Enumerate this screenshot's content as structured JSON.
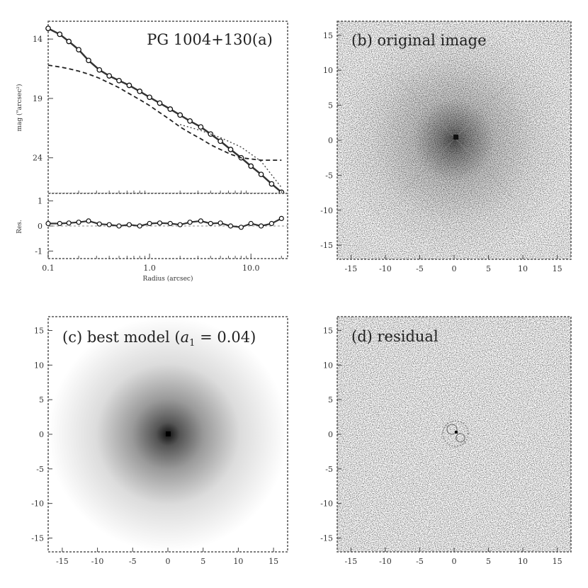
{
  "chart_data": [
    {
      "panel": "a",
      "type": "line",
      "title": "PG 1004+130(a)",
      "xlabel": "Radius (arcsec)",
      "xscale": "log",
      "xlim": [
        0.1,
        23
      ],
      "xticks": [
        "0.1",
        "1.0",
        "10.0"
      ],
      "top": {
        "ylabel": "mag (\"arcsec²)",
        "ylim": [
          27,
          12.5
        ],
        "yticks": [
          "14",
          "19",
          "24"
        ],
        "series": [
          {
            "style": "points",
            "x": [
              0.1,
              0.13,
              0.16,
              0.2,
              0.25,
              0.32,
              0.4,
              0.5,
              0.63,
              0.8,
              1.0,
              1.26,
              1.6,
              2.0,
              2.5,
              3.2,
              4.0,
              5.0,
              6.3,
              8.0,
              10.0,
              12.6,
              16.0,
              20.0
            ],
            "y": [
              13.1,
              13.6,
              14.2,
              14.9,
              15.8,
              16.6,
              17.1,
              17.5,
              17.9,
              18.4,
              18.9,
              19.4,
              19.9,
              20.4,
              20.9,
              21.4,
              22.0,
              22.6,
              23.3,
              24.0,
              24.7,
              25.4,
              26.2,
              26.9
            ]
          },
          {
            "style": "dashed",
            "x": [
              0.1,
              0.13,
              0.16,
              0.2,
              0.25,
              0.32,
              0.4,
              0.5,
              0.63,
              0.8,
              1.0,
              1.26,
              1.6,
              2.0,
              2.5,
              3.2,
              4.0,
              5.0,
              6.3,
              8.0,
              10.0,
              12.6,
              16.0,
              20.0
            ],
            "y": [
              16.2,
              16.35,
              16.5,
              16.7,
              16.95,
              17.3,
              17.7,
              18.1,
              18.6,
              19.1,
              19.6,
              20.2,
              20.8,
              21.4,
              21.9,
              22.4,
              22.9,
              23.3,
              23.7,
              24.0,
              24.1,
              24.2,
              24.2,
              24.2
            ]
          },
          {
            "style": "dotted",
            "x": [
              2.0,
              3.2,
              5.0,
              8.0,
              12.6,
              20.0
            ],
            "y": [
              21.2,
              21.7,
              22.3,
              23.1,
              24.3,
              26.5
            ]
          }
        ]
      },
      "bottom": {
        "ylabel": "Res.",
        "ylim": [
          -1.3,
          1.3
        ],
        "yticks": [
          "1",
          "0",
          "-1"
        ],
        "x": [
          0.1,
          0.13,
          0.16,
          0.2,
          0.25,
          0.32,
          0.4,
          0.5,
          0.63,
          0.8,
          1.0,
          1.26,
          1.6,
          2.0,
          2.5,
          3.2,
          4.0,
          5.0,
          6.3,
          8.0,
          10.0,
          12.6,
          16.0,
          20.0
        ],
        "y": [
          0.1,
          0.1,
          0.12,
          0.15,
          0.2,
          0.08,
          0.05,
          0.0,
          0.05,
          0.0,
          0.1,
          0.12,
          0.1,
          0.05,
          0.15,
          0.2,
          0.1,
          0.12,
          0.0,
          -0.05,
          0.1,
          0.0,
          0.1,
          0.3
        ]
      }
    },
    {
      "panel": "b",
      "type": "heatmap",
      "title": "(b) original image",
      "xlim": [
        -17,
        17
      ],
      "ylim": [
        -17,
        17
      ],
      "xticks": [
        "-15",
        "-10",
        "-5",
        "0",
        "5",
        "10",
        "15"
      ],
      "yticks": [
        "15",
        "10",
        "5",
        "0",
        "-5",
        "-10",
        "-15"
      ]
    },
    {
      "panel": "c",
      "type": "heatmap",
      "title_prefix": "(c) best model (",
      "title_symbol": "a",
      "title_sub": "1",
      "title_suffix": " = 0.04)",
      "xlim": [
        -17,
        17
      ],
      "ylim": [
        -17,
        17
      ],
      "xticks": [
        "-15",
        "-10",
        "-5",
        "0",
        "5",
        "10",
        "15"
      ],
      "yticks": [
        "15",
        "10",
        "5",
        "0",
        "-5",
        "-10",
        "-15"
      ]
    },
    {
      "panel": "d",
      "type": "heatmap",
      "title": "(d) residual",
      "xlim": [
        -17,
        17
      ],
      "ylim": [
        -17,
        17
      ],
      "xticks": [
        "-15",
        "-10",
        "-5",
        "0",
        "5",
        "10",
        "15"
      ],
      "yticks": [
        "15",
        "10",
        "5",
        "0",
        "-5",
        "-10",
        "-15"
      ]
    }
  ]
}
